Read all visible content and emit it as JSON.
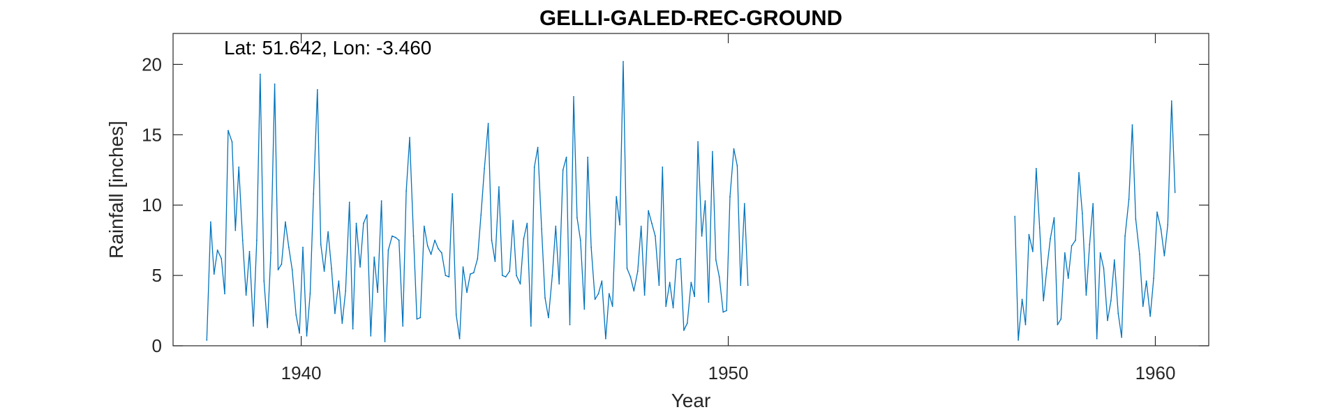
{
  "chart_data": {
    "type": "line",
    "title": "GELLI-GALED-REC-GROUND",
    "xlabel": "Year",
    "ylabel": "Rainfall [inches]",
    "annotation": "Lat: 51.642, Lon: -3.460",
    "xlim": [
      1937.0,
      1961.25
    ],
    "ylim": [
      0,
      22.2
    ],
    "x_ticks": [
      1940,
      1950,
      1960
    ],
    "y_ticks": [
      0,
      5,
      10,
      15,
      20
    ],
    "grid": false,
    "line_color": "#0072BD",
    "series": [
      {
        "x": [
          1937.79,
          1937.88,
          1937.96,
          1938.04,
          1938.13,
          1938.21,
          1938.29,
          1938.38,
          1938.46,
          1938.54,
          1938.63,
          1938.71,
          1938.79,
          1938.88,
          1938.96,
          1939.04,
          1939.13,
          1939.21,
          1939.29,
          1939.38,
          1939.46,
          1939.54,
          1939.63,
          1939.71,
          1939.79,
          1939.88,
          1939.96,
          1940.04,
          1940.13,
          1940.21,
          1940.29,
          1940.38,
          1940.46,
          1940.54,
          1940.63,
          1940.71,
          1940.79,
          1940.88,
          1940.96,
          1941.04,
          1941.13,
          1941.21,
          1941.29,
          1941.38,
          1941.46,
          1941.54,
          1941.63,
          1941.71,
          1941.79,
          1941.88,
          1941.96,
          1942.04,
          1942.13,
          1942.21,
          1942.29,
          1942.38,
          1942.46,
          1942.54,
          1942.63,
          1942.71,
          1942.79,
          1942.88,
          1942.96,
          1943.04,
          1943.13,
          1943.21,
          1943.29,
          1943.38,
          1943.46,
          1943.54,
          1943.63,
          1943.71,
          1943.79,
          1943.88,
          1943.96,
          1944.04,
          1944.13,
          1944.21,
          1944.29,
          1944.38,
          1944.46,
          1944.54,
          1944.63,
          1944.71,
          1944.79,
          1944.88,
          1944.96,
          1945.04,
          1945.13,
          1945.21,
          1945.29,
          1945.38,
          1945.46,
          1945.54,
          1945.63,
          1945.71,
          1945.79,
          1945.88,
          1945.96,
          1946.04,
          1946.13,
          1946.21,
          1946.29,
          1946.38,
          1946.46,
          1946.54,
          1946.63,
          1946.71,
          1946.79,
          1946.88,
          1946.96,
          1947.04,
          1947.13,
          1947.21,
          1947.29,
          1947.38,
          1947.46,
          1947.54,
          1947.63,
          1947.71,
          1947.79,
          1947.88,
          1947.96,
          1948.04,
          1948.13,
          1948.21,
          1948.29,
          1948.38,
          1948.46,
          1948.54,
          1948.63,
          1948.71,
          1948.79,
          1948.88,
          1948.96,
          1949.04,
          1949.13,
          1949.21,
          1949.29,
          1949.38,
          1949.46,
          1949.54,
          1949.63,
          1949.71,
          1949.79,
          1949.88,
          1949.96,
          1950.04,
          1950.13,
          1950.21,
          1950.29,
          1950.38,
          1950.46
        ],
        "y": [
          0.4,
          8.8,
          5.1,
          6.8,
          6.2,
          3.7,
          15.3,
          14.5,
          8.2,
          12.7,
          7.5,
          3.6,
          6.7,
          1.4,
          7.5,
          19.3,
          4.6,
          1.3,
          6.6,
          18.6,
          5.4,
          5.8,
          8.8,
          7.0,
          5.4,
          2.2,
          0.9,
          7.0,
          0.7,
          3.7,
          10.8,
          18.2,
          7.2,
          5.3,
          8.1,
          5.5,
          2.3,
          4.6,
          1.6,
          3.9,
          10.2,
          1.2,
          8.7,
          5.6,
          8.7,
          9.3,
          0.7,
          6.3,
          3.8,
          10.3,
          0.3,
          6.8,
          7.8,
          7.7,
          7.5,
          1.4,
          11.0,
          14.8,
          7.8,
          1.9,
          2.0,
          8.5,
          7.1,
          6.5,
          7.5,
          6.9,
          6.6,
          5.0,
          4.9,
          10.8,
          2.2,
          0.5,
          5.6,
          3.8,
          5.1,
          5.2,
          6.2,
          9.3,
          12.6,
          15.8,
          7.5,
          6.0,
          11.3,
          5.0,
          4.9,
          5.3,
          8.9,
          5.0,
          4.4,
          7.6,
          8.7,
          1.4,
          12.7,
          14.1,
          8.3,
          3.4,
          2.0,
          5.0,
          8.5,
          4.4,
          12.5,
          13.4,
          1.5,
          17.7,
          9.1,
          7.5,
          2.6,
          13.4,
          7.0,
          3.3,
          3.7,
          4.6,
          0.5,
          3.7,
          2.8,
          10.6,
          8.6,
          20.2,
          5.5,
          4.9,
          3.9,
          5.3,
          8.5,
          3.6,
          9.6,
          8.7,
          7.8,
          4.3,
          12.7,
          2.8,
          4.5,
          2.7,
          6.1,
          6.2,
          1.1,
          1.6,
          4.5,
          3.5,
          14.5,
          7.8,
          10.3,
          3.1,
          13.8,
          6.1,
          4.9,
          2.4,
          2.5,
          10.6,
          14.0,
          12.8,
          4.3,
          10.1,
          4.3
        ]
      },
      {
        "x": [
          1956.71,
          1956.79,
          1956.88,
          1956.96,
          1957.04,
          1957.13,
          1957.21,
          1957.29,
          1957.38,
          1957.46,
          1957.54,
          1957.63,
          1957.71,
          1957.79,
          1957.88,
          1957.96,
          1958.04,
          1958.13,
          1958.21,
          1958.29,
          1958.38,
          1958.46,
          1958.54,
          1958.63,
          1958.71,
          1958.79,
          1958.88,
          1958.96,
          1959.04,
          1959.13,
          1959.21,
          1959.29,
          1959.38,
          1959.46,
          1959.54,
          1959.63,
          1959.71,
          1959.79,
          1959.88,
          1959.96,
          1960.04,
          1960.13,
          1960.21,
          1960.29,
          1960.38,
          1960.46
        ],
        "y": [
          9.2,
          0.4,
          3.3,
          1.5,
          7.9,
          6.7,
          12.6,
          8.4,
          3.2,
          5.5,
          7.6,
          9.1,
          1.5,
          1.9,
          6.6,
          4.8,
          7.1,
          7.5,
          12.3,
          9.4,
          3.6,
          7.2,
          10.1,
          0.5,
          6.6,
          5.5,
          1.8,
          3.2,
          6.1,
          2.3,
          0.6,
          7.8,
          10.4,
          15.7,
          9.0,
          6.5,
          2.8,
          4.6,
          2.1,
          4.8,
          9.5,
          8.3,
          6.4,
          8.6,
          17.4,
          10.9
        ]
      }
    ]
  }
}
